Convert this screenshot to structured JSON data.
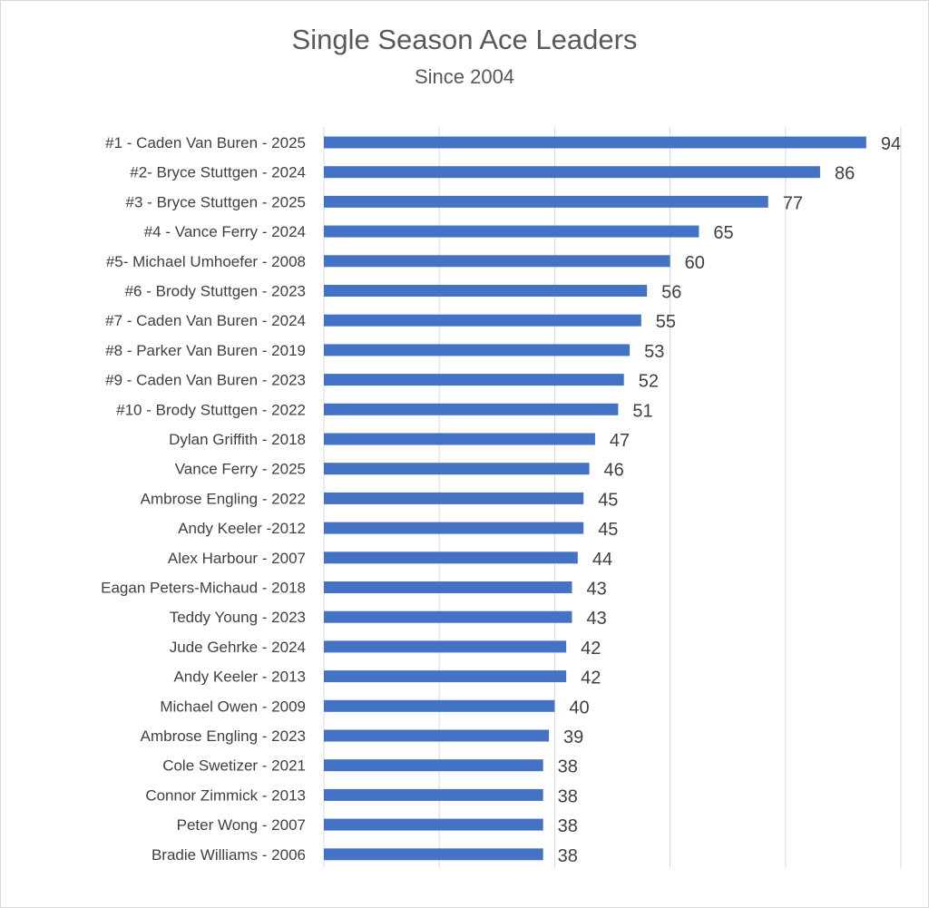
{
  "colors": {
    "bar": "#4472c4",
    "grid": "#d9d9d9",
    "text": "#404040"
  },
  "chart_data": {
    "type": "bar",
    "orientation": "horizontal",
    "title": "Single Season Ace Leaders",
    "subtitle": "Since 2004",
    "xlabel": "",
    "ylabel": "",
    "xlim": [
      0,
      100
    ],
    "grid": true,
    "legend": "none",
    "categories": [
      "#1 - Caden Van Buren - 2025",
      "#2- Bryce Stuttgen - 2024",
      "#3 - Bryce Stuttgen - 2025",
      "#4 - Vance Ferry - 2024",
      "#5- Michael Umhoefer - 2008",
      "#6 - Brody Stuttgen - 2023",
      "#7 - Caden Van Buren - 2024",
      "#8 - Parker Van Buren - 2019",
      "#9 - Caden Van Buren - 2023",
      "#10 - Brody Stuttgen - 2022",
      "Dylan Griffith - 2018",
      "Vance Ferry - 2025",
      "Ambrose Engling - 2022",
      "Andy Keeler -2012",
      "Alex Harbour - 2007",
      "Eagan Peters-Michaud - 2018",
      "Teddy Young - 2023",
      "Jude Gehrke - 2024",
      "Andy Keeler - 2013",
      "Michael Owen - 2009",
      "Ambrose Engling - 2023",
      "Cole Swetizer - 2021",
      "Connor Zimmick - 2013",
      "Peter Wong - 2007",
      "Bradie Williams - 2006"
    ],
    "values": [
      94,
      86,
      77,
      65,
      60,
      56,
      55,
      53,
      52,
      51,
      47,
      46,
      45,
      45,
      44,
      43,
      43,
      42,
      42,
      40,
      39,
      38,
      38,
      38,
      38
    ]
  }
}
